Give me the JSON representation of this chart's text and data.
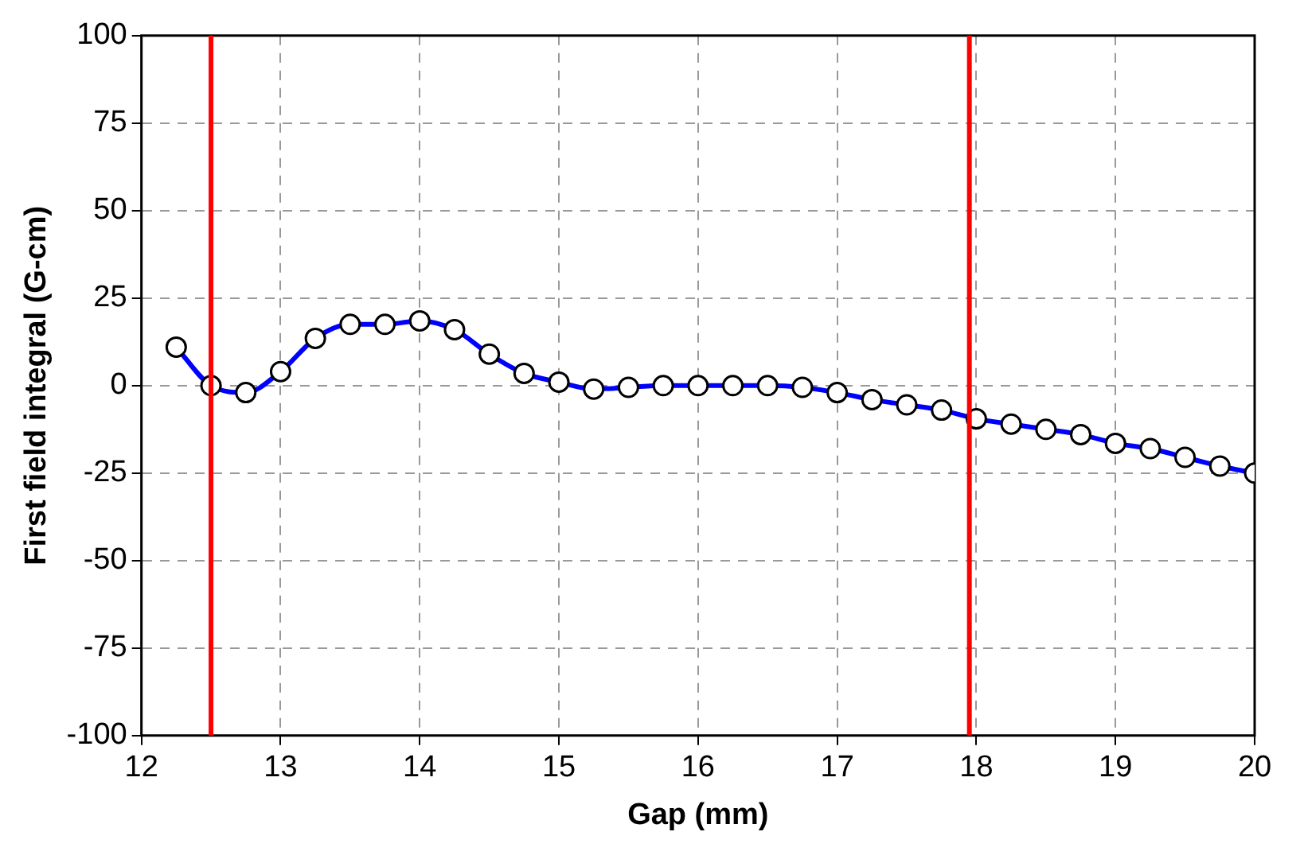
{
  "chart_data": {
    "type": "line",
    "xlabel": "Gap (mm)",
    "ylabel": "First field integral (G-cm)",
    "x": [
      12.25,
      12.5,
      12.75,
      13,
      13.25,
      13.5,
      13.75,
      14,
      14.25,
      14.5,
      14.75,
      15,
      15.25,
      15.5,
      15.75,
      16,
      16.25,
      16.5,
      16.75,
      17,
      17.25,
      17.5,
      17.75,
      18,
      18.25,
      18.5,
      18.75,
      19,
      19.25,
      19.5,
      19.75,
      20
    ],
    "series": [
      {
        "color": "#0000ff",
        "values": [
          11,
          0,
          -2,
          4,
          13.5,
          17.5,
          17.5,
          18.5,
          16,
          9,
          3.5,
          1,
          -1,
          -0.5,
          0,
          0,
          0,
          0,
          -0.5,
          -2,
          -4,
          -5.5,
          -7,
          -9.5,
          -11,
          -12.5,
          -14,
          -16.5,
          -18,
          -20.5,
          -23,
          -25
        ]
      }
    ],
    "xlim": [
      12,
      20
    ],
    "xticks": [
      12,
      13,
      14,
      15,
      16,
      17,
      18,
      19,
      20
    ],
    "ylim": [
      -100,
      100
    ],
    "yticks": [
      -100,
      -75,
      -50,
      -25,
      0,
      25,
      50,
      75,
      100
    ],
    "ref_lines": [
      {
        "axis": "x",
        "value": 12.5,
        "color": "#ff0000"
      },
      {
        "axis": "x",
        "value": 17.95,
        "color": "#ff0000"
      }
    ],
    "grid": true,
    "marker": "circle",
    "line_style": "solid",
    "legend": false
  }
}
